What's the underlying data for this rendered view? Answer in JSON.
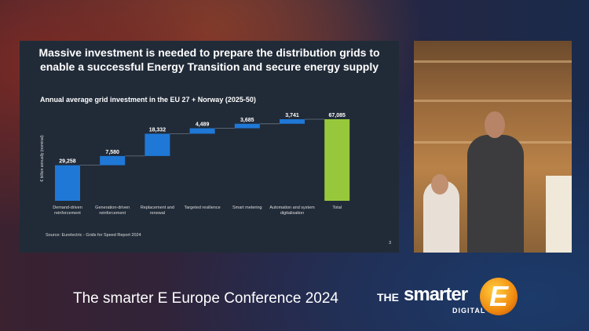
{
  "slide": {
    "title_line1": "Massive investment is needed to prepare the distribution grids to",
    "title_line2": "enable a successful Energy Transition and secure energy supply",
    "source": "Source: Eurelectric - Grids for Speed Report 2024",
    "page_number": "3"
  },
  "chart_data": {
    "type": "waterfall",
    "title": "Annual average grid investment in the EU 27 + Norway (2025-50)",
    "ylabel": "€ billion annually (nominal)",
    "categories": [
      "Demand-driven reinforcement",
      "Generation-driven reinforcement",
      "Replacement and renewal",
      "Targeted resilience",
      "Smart metering",
      "Automation and system digitalisation",
      "Total"
    ],
    "values": [
      29258,
      7580,
      18332,
      4489,
      3685,
      3741,
      67085
    ],
    "labels": [
      "29,258",
      "7,580",
      "18,332",
      "4,489",
      "3,685",
      "3,741",
      "67,085"
    ],
    "is_total": [
      false,
      false,
      false,
      false,
      false,
      false,
      true
    ],
    "colors": {
      "increment": "#1f78d6",
      "total": "#97c83c",
      "connector": "#6b7480"
    }
  },
  "footer": {
    "event": "The smarter E Europe Conference 2024"
  },
  "logo": {
    "the": "THE",
    "smarter": "smarter",
    "digital": "DIGITAL",
    "e": "E"
  }
}
